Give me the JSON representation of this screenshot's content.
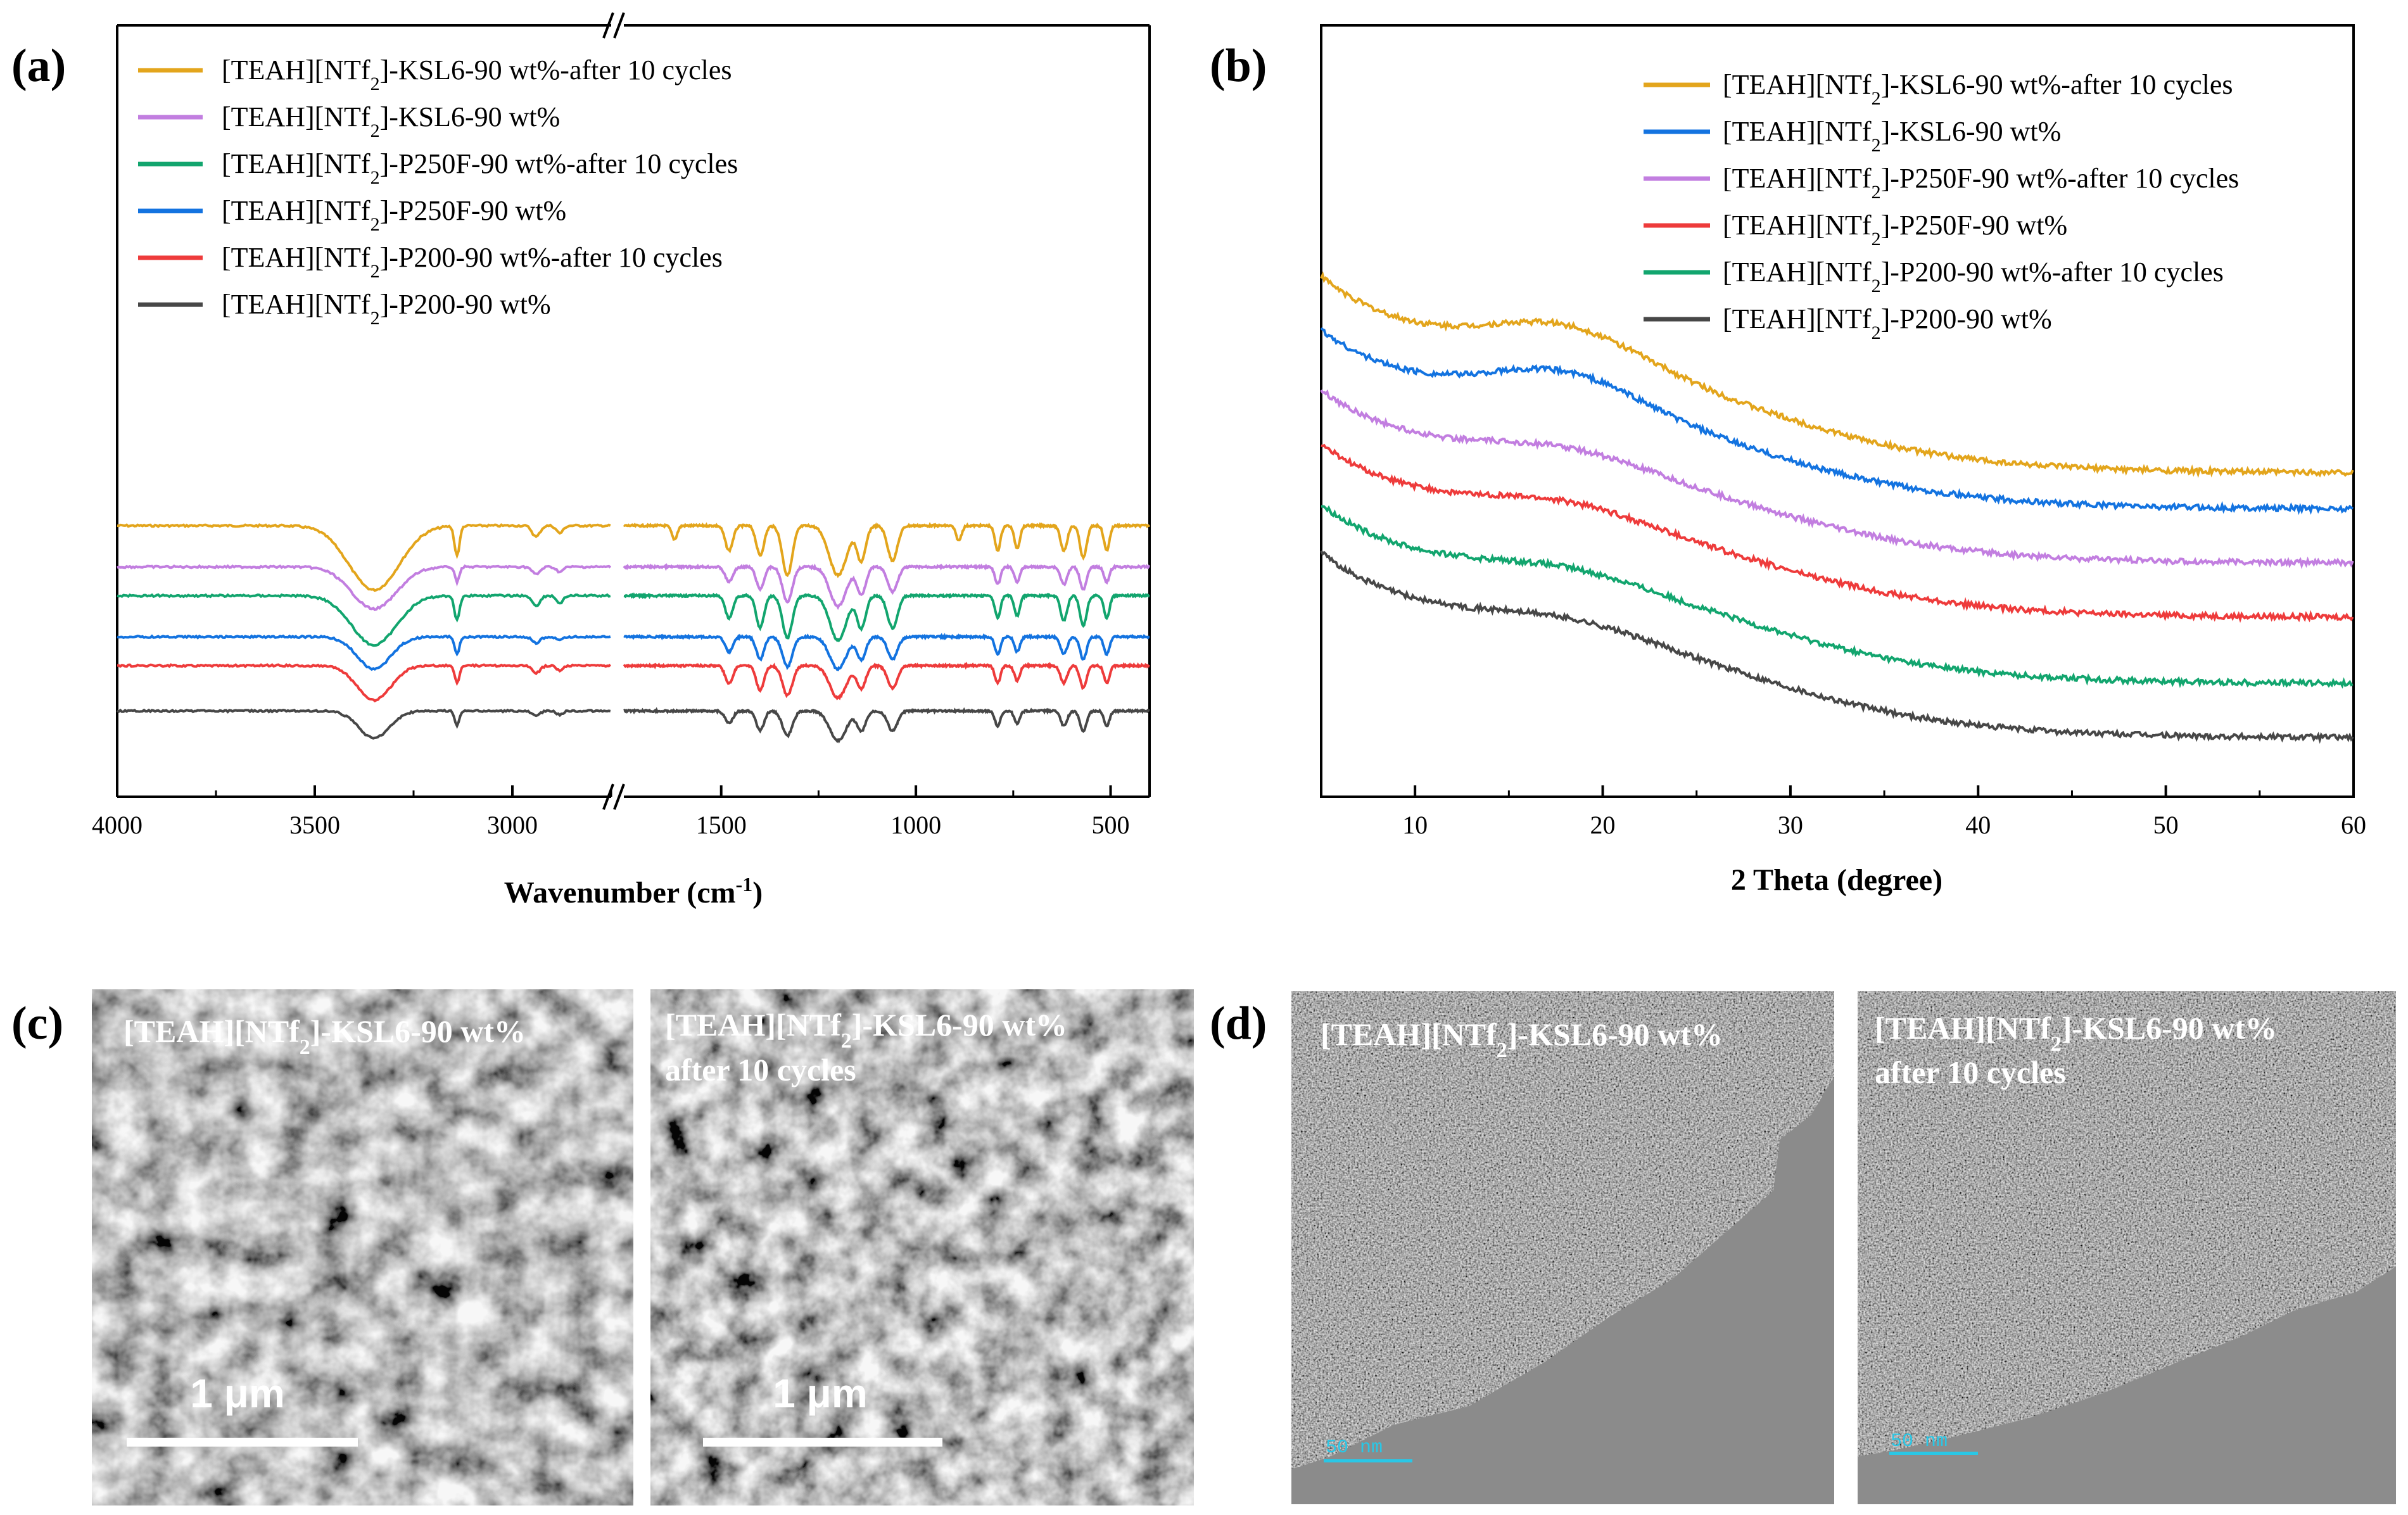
{
  "colors": {
    "gold": "#E3A51C",
    "violet": "#C27EE0",
    "green": "#12A56E",
    "blue": "#1373E0",
    "red": "#EE3B3B",
    "gray": "#474747"
  },
  "panels": {
    "a": {
      "label": "(a)"
    },
    "b": {
      "label": "(b)"
    },
    "c": {
      "label": "(c)",
      "images": [
        {
          "caption_main": "[TEAH][NTf",
          "caption_sub": "2",
          "caption_rest": "]-KSL6-90 wt%",
          "caption_line2": "",
          "scale_label": "1 μm"
        },
        {
          "caption_main": "[TEAH][NTf",
          "caption_sub": "2",
          "caption_rest": "]-KSL6-90 wt%",
          "caption_line2": "after 10 cycles",
          "scale_label": "1 μm"
        }
      ]
    },
    "d": {
      "label": "(d)",
      "images": [
        {
          "caption_main": "[TEAH][NTf",
          "caption_sub": "2",
          "caption_rest": "]-KSL6-90 wt%",
          "caption_line2": "",
          "scale_label": "50 nm"
        },
        {
          "caption_main": "[TEAH][NTf",
          "caption_sub": "2",
          "caption_rest": "]-KSL6-90 wt%",
          "caption_line2": "after 10 cycles",
          "scale_label": "50 nm"
        }
      ]
    }
  },
  "chart_data": [
    {
      "id": "a",
      "type": "line",
      "title": "",
      "xlabel_main": "Wavenumber (cm",
      "xlabel_sup": "-1",
      "xlabel_end": ")",
      "ylabel": "",
      "x_broken": true,
      "xlim_left_segment": [
        4000,
        2750
      ],
      "xlim_right_segment": [
        1750,
        400
      ],
      "xticks": [
        "4000",
        "3500",
        "3000",
        "1500",
        "1000",
        "500"
      ],
      "legend_placement": "top-left",
      "series": [
        {
          "name_main": "[TEAH][NTf",
          "name_sub": "2",
          "name_rest": "]-KSL6-90 wt%-after 10 cycles",
          "color": "#E3A51C",
          "offset": 5.2,
          "peaks": [
            [
              3350,
              2.6,
              90
            ],
            [
              3140,
              1.2,
              9
            ],
            [
              2940,
              0.45,
              14
            ],
            [
              2880,
              0.3,
              12
            ],
            [
              1620,
              0.55,
              10
            ],
            [
              1480,
              1.0,
              14
            ],
            [
              1400,
              1.2,
              14
            ],
            [
              1330,
              2.0,
              18
            ],
            [
              1200,
              2.0,
              32
            ],
            [
              1140,
              1.4,
              16
            ],
            [
              1060,
              1.4,
              18
            ],
            [
              890,
              0.6,
              10
            ],
            [
              790,
              1.0,
              10
            ],
            [
              740,
              0.9,
              10
            ],
            [
              620,
              1.0,
              12
            ],
            [
              570,
              1.3,
              12
            ],
            [
              510,
              1.0,
              10
            ]
          ]
        },
        {
          "name_main": "[TEAH][NTf",
          "name_sub": "2",
          "name_rest": "]-KSL6-90 wt%",
          "color": "#C27EE0",
          "offset": 4.2,
          "peaks": [
            [
              3350,
              1.7,
              80
            ],
            [
              3140,
              0.6,
              8
            ],
            [
              2940,
              0.3,
              14
            ],
            [
              2880,
              0.2,
              12
            ],
            [
              1480,
              0.6,
              14
            ],
            [
              1400,
              0.9,
              14
            ],
            [
              1330,
              1.4,
              18
            ],
            [
              1200,
              1.6,
              30
            ],
            [
              1140,
              1.1,
              16
            ],
            [
              1060,
              1.0,
              18
            ],
            [
              790,
              0.7,
              10
            ],
            [
              740,
              0.6,
              10
            ],
            [
              620,
              0.7,
              12
            ],
            [
              570,
              0.9,
              12
            ],
            [
              510,
              0.6,
              10
            ]
          ]
        },
        {
          "name_main": "[TEAH][NTf",
          "name_sub": "2",
          "name_rest": "]-P250F-90 wt%-after 10 cycles",
          "color": "#12A56E",
          "offset": 3.5,
          "peaks": [
            [
              3350,
              2.0,
              80
            ],
            [
              3140,
              1.0,
              9
            ],
            [
              2940,
              0.4,
              14
            ],
            [
              2880,
              0.3,
              12
            ],
            [
              1480,
              0.9,
              14
            ],
            [
              1400,
              1.3,
              14
            ],
            [
              1330,
              1.7,
              18
            ],
            [
              1200,
              1.8,
              30
            ],
            [
              1140,
              1.3,
              16
            ],
            [
              1060,
              1.3,
              18
            ],
            [
              790,
              0.9,
              10
            ],
            [
              740,
              0.8,
              10
            ],
            [
              620,
              1.0,
              12
            ],
            [
              570,
              1.2,
              12
            ],
            [
              510,
              0.9,
              10
            ]
          ]
        },
        {
          "name_main": "[TEAH][NTf",
          "name_sub": "2",
          "name_rest": "]-P250F-90 wt%",
          "color": "#1373E0",
          "offset": 2.5,
          "peaks": [
            [
              3350,
              1.3,
              60
            ],
            [
              3140,
              0.7,
              8
            ],
            [
              2940,
              0.25,
              14
            ],
            [
              2880,
              0.15,
              12
            ],
            [
              1480,
              0.6,
              14
            ],
            [
              1400,
              0.9,
              14
            ],
            [
              1330,
              1.2,
              18
            ],
            [
              1200,
              1.3,
              30
            ],
            [
              1140,
              0.9,
              16
            ],
            [
              1060,
              0.9,
              18
            ],
            [
              790,
              0.7,
              10
            ],
            [
              740,
              0.6,
              10
            ],
            [
              620,
              0.7,
              12
            ],
            [
              570,
              0.9,
              12
            ],
            [
              510,
              0.7,
              10
            ]
          ]
        },
        {
          "name_main": "[TEAH][NTf",
          "name_sub": "2",
          "name_rest": "]-P200-90 wt%-after 10 cycles",
          "color": "#EE3B3B",
          "offset": 1.8,
          "peaks": [
            [
              3350,
              1.4,
              60
            ],
            [
              3140,
              0.7,
              8
            ],
            [
              2940,
              0.3,
              14
            ],
            [
              2880,
              0.2,
              12
            ],
            [
              1480,
              0.7,
              14
            ],
            [
              1400,
              1.0,
              14
            ],
            [
              1330,
              1.2,
              18
            ],
            [
              1200,
              1.3,
              30
            ],
            [
              1140,
              0.9,
              16
            ],
            [
              1060,
              0.9,
              18
            ],
            [
              790,
              0.7,
              10
            ],
            [
              740,
              0.6,
              10
            ],
            [
              620,
              0.7,
              12
            ],
            [
              570,
              0.9,
              12
            ],
            [
              510,
              0.7,
              10
            ]
          ]
        },
        {
          "name_main": "[TEAH][NTf",
          "name_sub": "2",
          "name_rest": "]-P200-90 wt%",
          "color": "#474747",
          "offset": 0.7,
          "peaks": [
            [
              3350,
              1.1,
              55
            ],
            [
              3140,
              0.6,
              8
            ],
            [
              2940,
              0.2,
              14
            ],
            [
              2880,
              0.15,
              12
            ],
            [
              1480,
              0.5,
              14
            ],
            [
              1400,
              0.8,
              14
            ],
            [
              1330,
              1.0,
              18
            ],
            [
              1200,
              1.2,
              30
            ],
            [
              1140,
              0.8,
              16
            ],
            [
              1060,
              0.8,
              18
            ],
            [
              790,
              0.6,
              10
            ],
            [
              740,
              0.5,
              10
            ],
            [
              620,
              0.6,
              12
            ],
            [
              570,
              0.8,
              12
            ],
            [
              510,
              0.6,
              10
            ]
          ]
        }
      ]
    },
    {
      "id": "b",
      "type": "line",
      "title": "",
      "xlabel": "2 Theta (degree)",
      "ylabel": "",
      "xlim": [
        5,
        60
      ],
      "xticks": [
        10,
        20,
        30,
        40,
        50,
        60
      ],
      "legend_placement": "top-right",
      "series": [
        {
          "name_main": "[TEAH][NTf",
          "name_sub": "2",
          "name_rest": "]-KSL6-90 wt%-after 10 cycles",
          "color": "#E3A51C",
          "start": 9.0,
          "end": 5.7,
          "hump": 0.55
        },
        {
          "name_main": "[TEAH][NTf",
          "name_sub": "2",
          "name_rest": "]-KSL6-90 wt%",
          "color": "#1373E0",
          "start": 8.1,
          "end": 5.1,
          "hump": 0.55
        },
        {
          "name_main": "[TEAH][NTf",
          "name_sub": "2",
          "name_rest": "]-P250F-90 wt%-after 10 cycles",
          "color": "#C27EE0",
          "start": 7.1,
          "end": 4.2,
          "hump": 0.25
        },
        {
          "name_main": "[TEAH][NTf",
          "name_sub": "2",
          "name_rest": "]-P250F-90 wt%",
          "color": "#EE3B3B",
          "start": 6.2,
          "end": 3.3,
          "hump": 0.25
        },
        {
          "name_main": "[TEAH][NTf",
          "name_sub": "2",
          "name_rest": "]-P200-90 wt%-after 10 cycles",
          "color": "#12A56E",
          "start": 5.2,
          "end": 2.2,
          "hump": 0.2
        },
        {
          "name_main": "[TEAH][NTf",
          "name_sub": "2",
          "name_rest": "]-P200-90 wt%",
          "color": "#474747",
          "start": 4.4,
          "end": 1.3,
          "hump": 0.2
        }
      ]
    }
  ]
}
